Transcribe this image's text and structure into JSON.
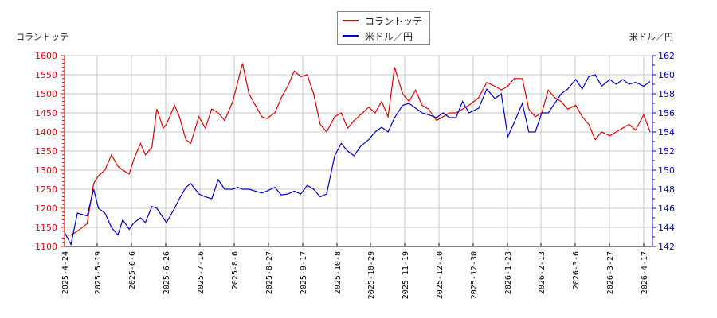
{
  "legend": {
    "items": [
      {
        "label": "コラントッテ",
        "color": "#e00000"
      },
      {
        "label": "米ドル／円",
        "color": "#0000cc"
      }
    ]
  },
  "axes": {
    "left_title": "コラントッテ",
    "right_title": "米ドル／円"
  },
  "chart_data": {
    "type": "line",
    "title": "",
    "xlabel": "",
    "ylabel_left": "コラントッテ",
    "ylabel_right": "米ドル／円",
    "ylim_left": [
      1100,
      1600
    ],
    "ylim_right": [
      142,
      162
    ],
    "yticks_left": [
      1100,
      1150,
      1200,
      1250,
      1300,
      1350,
      1400,
      1450,
      1500,
      1550,
      1600
    ],
    "yticks_right": [
      142,
      144,
      146,
      148,
      150,
      152,
      154,
      156,
      158,
      160,
      162
    ],
    "xticks": [
      "2025-4-24",
      "2025-5-19",
      "2025-6-6",
      "2025-6-26",
      "2025-7-16",
      "2025-8-6",
      "2025-8-27",
      "2025-9-17",
      "2025-10-8",
      "2025-10-29",
      "2025-11-19",
      "2025-12-10",
      "2025-12-30",
      "2026-1-23",
      "2026-2-13",
      "2026-3-6",
      "2026-3-27",
      "2026-4-17"
    ],
    "grid": true,
    "legend_position": "top-center",
    "series": [
      {
        "name": "コラントッテ",
        "axis": "left",
        "color": "#e00000",
        "x": [
          "2025-4-24",
          "2025-4-28",
          "2025-5-2",
          "2025-5-8",
          "2025-5-12",
          "2025-5-15",
          "2025-5-19",
          "2025-5-23",
          "2025-5-27",
          "2025-5-30",
          "2025-6-3",
          "2025-6-6",
          "2025-6-10",
          "2025-6-13",
          "2025-6-17",
          "2025-6-20",
          "2025-6-24",
          "2025-6-26",
          "2025-7-1",
          "2025-7-4",
          "2025-7-8",
          "2025-7-11",
          "2025-7-16",
          "2025-7-20",
          "2025-7-24",
          "2025-7-28",
          "2025-8-1",
          "2025-8-6",
          "2025-8-9",
          "2025-8-12",
          "2025-8-16",
          "2025-8-20",
          "2025-8-24",
          "2025-8-27",
          "2025-9-1",
          "2025-9-5",
          "2025-9-9",
          "2025-9-13",
          "2025-9-17",
          "2025-9-21",
          "2025-9-25",
          "2025-9-29",
          "2025-10-3",
          "2025-10-8",
          "2025-10-12",
          "2025-10-16",
          "2025-10-20",
          "2025-10-24",
          "2025-10-29",
          "2025-11-2",
          "2025-11-6",
          "2025-11-10",
          "2025-11-14",
          "2025-11-19",
          "2025-11-23",
          "2025-11-27",
          "2025-12-1",
          "2025-12-5",
          "2025-12-10",
          "2025-12-14",
          "2025-12-18",
          "2025-12-22",
          "2025-12-26",
          "2025-12-30",
          "2026-1-5",
          "2026-1-10",
          "2026-1-15",
          "2026-1-19",
          "2026-1-23",
          "2026-1-27",
          "2026-2-1",
          "2026-2-5",
          "2026-2-9",
          "2026-2-13",
          "2026-2-17",
          "2026-2-21",
          "2026-2-25",
          "2026-3-1",
          "2026-3-6",
          "2026-3-10",
          "2026-3-14",
          "2026-3-18",
          "2026-3-22",
          "2026-3-27",
          "2026-3-31",
          "2026-4-4",
          "2026-4-8",
          "2026-4-12",
          "2026-4-17",
          "2026-4-21"
        ],
        "values": [
          1130,
          1130,
          1140,
          1160,
          1265,
          1285,
          1300,
          1340,
          1310,
          1300,
          1290,
          1330,
          1370,
          1340,
          1360,
          1460,
          1410,
          1420,
          1470,
          1440,
          1380,
          1370,
          1440,
          1410,
          1460,
          1450,
          1430,
          1480,
          1530,
          1580,
          1500,
          1470,
          1440,
          1435,
          1450,
          1490,
          1520,
          1560,
          1545,
          1550,
          1500,
          1420,
          1400,
          1440,
          1450,
          1410,
          1430,
          1445,
          1465,
          1450,
          1480,
          1440,
          1570,
          1500,
          1480,
          1510,
          1470,
          1460,
          1430,
          1440,
          1450,
          1450,
          1460,
          1470,
          1490,
          1530,
          1520,
          1510,
          1520,
          1540,
          1540,
          1460,
          1440,
          1450,
          1510,
          1490,
          1480,
          1460,
          1470,
          1440,
          1420,
          1380,
          1400,
          1390,
          1400,
          1410,
          1420,
          1405,
          1445,
          1400
        ]
      },
      {
        "name": "米ドル／円",
        "axis": "right",
        "color": "#0000cc",
        "x": [
          "2025-4-24",
          "2025-4-28",
          "2025-5-2",
          "2025-5-8",
          "2025-5-12",
          "2025-5-15",
          "2025-5-19",
          "2025-5-23",
          "2025-5-27",
          "2025-5-30",
          "2025-6-3",
          "2025-6-6",
          "2025-6-10",
          "2025-6-13",
          "2025-6-17",
          "2025-6-20",
          "2025-6-24",
          "2025-6-26",
          "2025-7-1",
          "2025-7-4",
          "2025-7-8",
          "2025-7-11",
          "2025-7-16",
          "2025-7-20",
          "2025-7-24",
          "2025-7-28",
          "2025-8-1",
          "2025-8-6",
          "2025-8-9",
          "2025-8-12",
          "2025-8-16",
          "2025-8-20",
          "2025-8-24",
          "2025-8-27",
          "2025-9-1",
          "2025-9-5",
          "2025-9-9",
          "2025-9-13",
          "2025-9-17",
          "2025-9-21",
          "2025-9-25",
          "2025-9-29",
          "2025-10-3",
          "2025-10-8",
          "2025-10-12",
          "2025-10-16",
          "2025-10-20",
          "2025-10-24",
          "2025-10-29",
          "2025-11-2",
          "2025-11-6",
          "2025-11-10",
          "2025-11-14",
          "2025-11-19",
          "2025-11-23",
          "2025-11-27",
          "2025-12-1",
          "2025-12-5",
          "2025-12-10",
          "2025-12-14",
          "2025-12-18",
          "2025-12-22",
          "2025-12-26",
          "2025-12-30",
          "2026-1-5",
          "2026-1-10",
          "2026-1-15",
          "2026-1-19",
          "2026-1-23",
          "2026-1-27",
          "2026-2-1",
          "2026-2-5",
          "2026-2-9",
          "2026-2-13",
          "2026-2-17",
          "2026-2-21",
          "2026-2-25",
          "2026-3-1",
          "2026-3-6",
          "2026-3-10",
          "2026-3-14",
          "2026-3-18",
          "2026-3-22",
          "2026-3-27",
          "2026-3-31",
          "2026-4-4",
          "2026-4-8",
          "2026-4-12",
          "2026-4-17",
          "2026-4-21"
        ],
        "values": [
          143.5,
          142.2,
          145.5,
          145.2,
          148.0,
          146.0,
          145.5,
          144.0,
          143.2,
          144.8,
          143.8,
          144.5,
          145.0,
          144.5,
          146.2,
          146.0,
          145.0,
          144.5,
          146.0,
          147.0,
          148.2,
          148.6,
          147.5,
          147.2,
          147.0,
          149.0,
          148.0,
          148.0,
          148.2,
          148.0,
          148.0,
          147.8,
          147.6,
          147.8,
          148.2,
          147.4,
          147.5,
          147.8,
          147.5,
          148.4,
          148.0,
          147.2,
          147.5,
          151.5,
          152.8,
          152.0,
          151.5,
          152.5,
          153.2,
          154.0,
          154.5,
          154.0,
          155.5,
          156.8,
          157.0,
          156.5,
          156.0,
          155.8,
          155.5,
          156.0,
          155.5,
          155.5,
          157.2,
          156.0,
          156.5,
          158.5,
          157.5,
          158.0,
          153.5,
          155.0,
          157.0,
          154.0,
          154.0,
          156.0,
          156.0,
          157.0,
          158.0,
          158.5,
          159.5,
          158.5,
          159.8,
          160.0,
          158.8,
          159.5,
          159.0,
          159.5,
          159.0,
          159.2,
          158.8,
          159.3
        ]
      }
    ]
  }
}
